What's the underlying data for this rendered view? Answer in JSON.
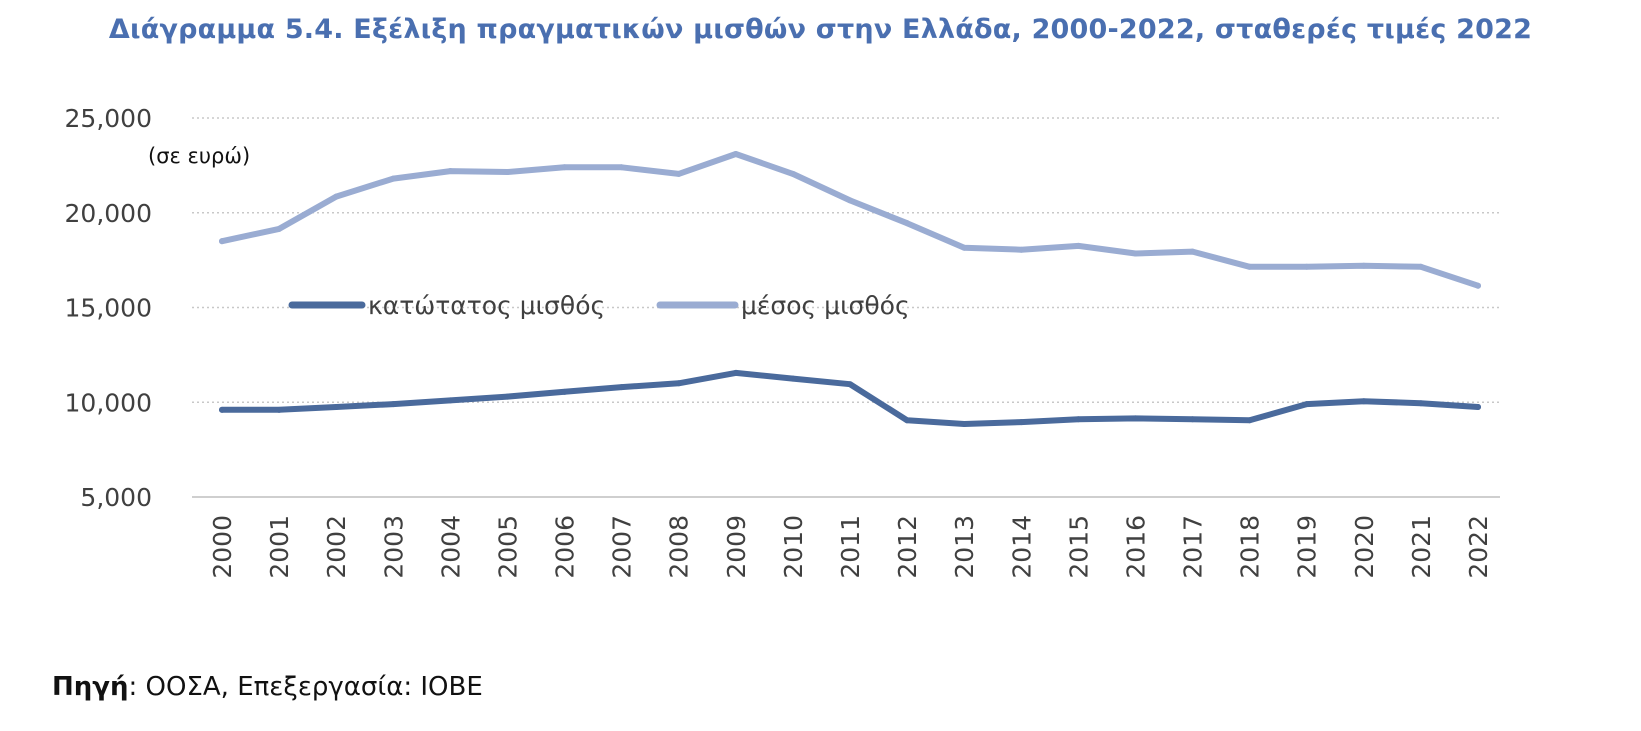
{
  "title": "Διάγραμμα 5.4. Εξέλιξη πραγματικών μισθών στην Ελλάδα, 2000-2022, σταθερές τιμές 2022",
  "source": {
    "label": "Πηγή",
    "text": ": ΟΟΣΑ, Επεξεργασία: ΙΟΒΕ"
  },
  "colors": {
    "title": "#4a6fb0",
    "minimum_wage": "#4a6a9c",
    "average_wage": "#9aacd2",
    "grid": "#c8c8c8",
    "axis": "#bfbfbf",
    "text": "#404040"
  },
  "chart_data": {
    "type": "line",
    "title": "Διάγραμμα 5.4. Εξέλιξη πραγματικών μισθών στην Ελλάδα, 2000-2022, σταθερές τιμές 2022",
    "unit_label": "(σε ευρώ)",
    "xlabel": "",
    "ylabel": "",
    "ylim": [
      5000,
      25000
    ],
    "yticks": [
      5000,
      10000,
      15000,
      20000,
      25000
    ],
    "ytick_labels": [
      "5,000",
      "10,000",
      "15,000",
      "20,000",
      "25,000"
    ],
    "grid": true,
    "legend_position": "center",
    "x": [
      "2000",
      "2001",
      "2002",
      "2003",
      "2004",
      "2005",
      "2006",
      "2007",
      "2008",
      "2009",
      "2010",
      "2011",
      "2012",
      "2013",
      "2014",
      "2015",
      "2016",
      "2017",
      "2018",
      "2019",
      "2020",
      "2021",
      "2022"
    ],
    "series": [
      {
        "name": "κατώτατος μισθός",
        "color": "#4a6a9c",
        "values": [
          9600,
          9600,
          9750,
          9900,
          10100,
          10300,
          10550,
          10800,
          11000,
          11550,
          11250,
          10950,
          9050,
          8850,
          8950,
          9100,
          9150,
          9100,
          9050,
          9900,
          10050,
          9950,
          9750
        ]
      },
      {
        "name": "μέσος μισθός",
        "color": "#9aacd2",
        "values": [
          18500,
          19150,
          20850,
          21800,
          22200,
          22150,
          22400,
          22400,
          22050,
          23100,
          22050,
          20650,
          19450,
          18150,
          18050,
          18250,
          17850,
          17950,
          17150,
          17150,
          17200,
          17150,
          16150
        ]
      }
    ]
  }
}
